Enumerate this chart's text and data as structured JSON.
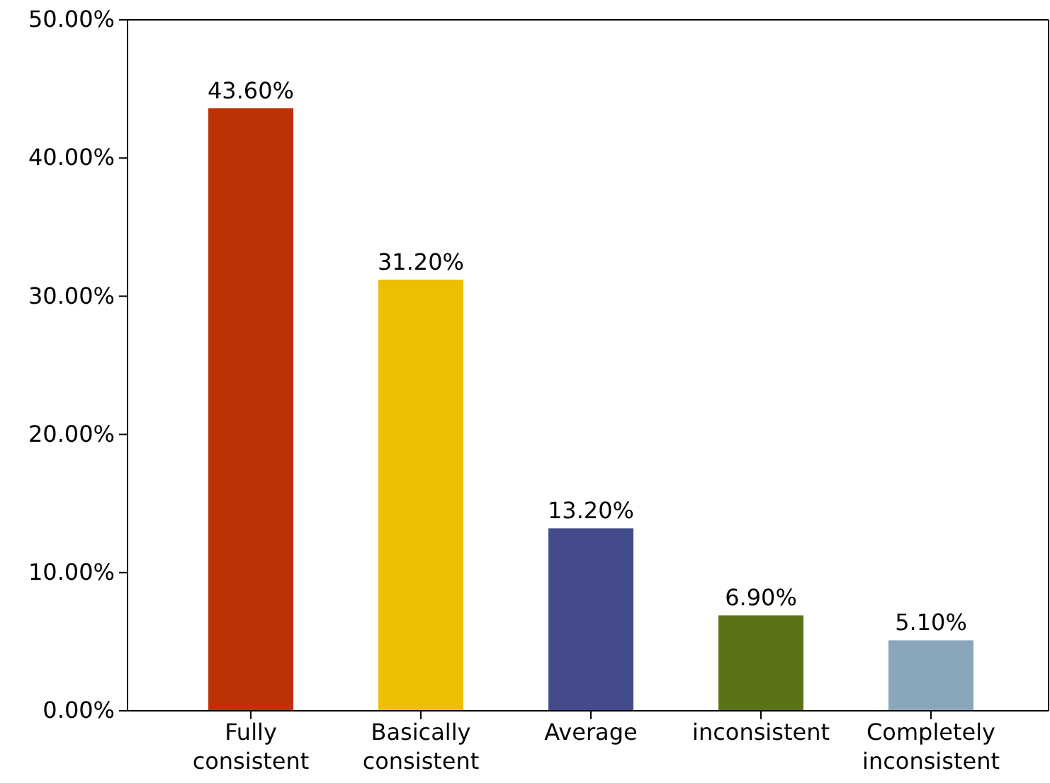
{
  "chart_data": {
    "type": "bar",
    "categories": [
      "Fully consistent",
      "Basically consistent",
      "Average",
      "inconsistent",
      "Completely inconsistent"
    ],
    "values": [
      43.6,
      31.2,
      13.2,
      6.9,
      5.1
    ],
    "colors": [
      "#bb3306",
      "#eebe04",
      "#444b8a",
      "#5b7317",
      "#8aa6bb"
    ],
    "value_labels": [
      "43.60%",
      "31.20%",
      "13.20%",
      "6.90%",
      "5.10%"
    ],
    "ylim": [
      0,
      50
    ],
    "yticks": [
      {
        "value": 0,
        "label": "0.00%"
      },
      {
        "value": 10,
        "label": "10.00%"
      },
      {
        "value": 20,
        "label": "20.00%"
      },
      {
        "value": 30,
        "label": "30.00%"
      },
      {
        "value": 40,
        "label": "40.00%"
      },
      {
        "value": 50,
        "label": "50.00%"
      }
    ],
    "grid": false
  }
}
